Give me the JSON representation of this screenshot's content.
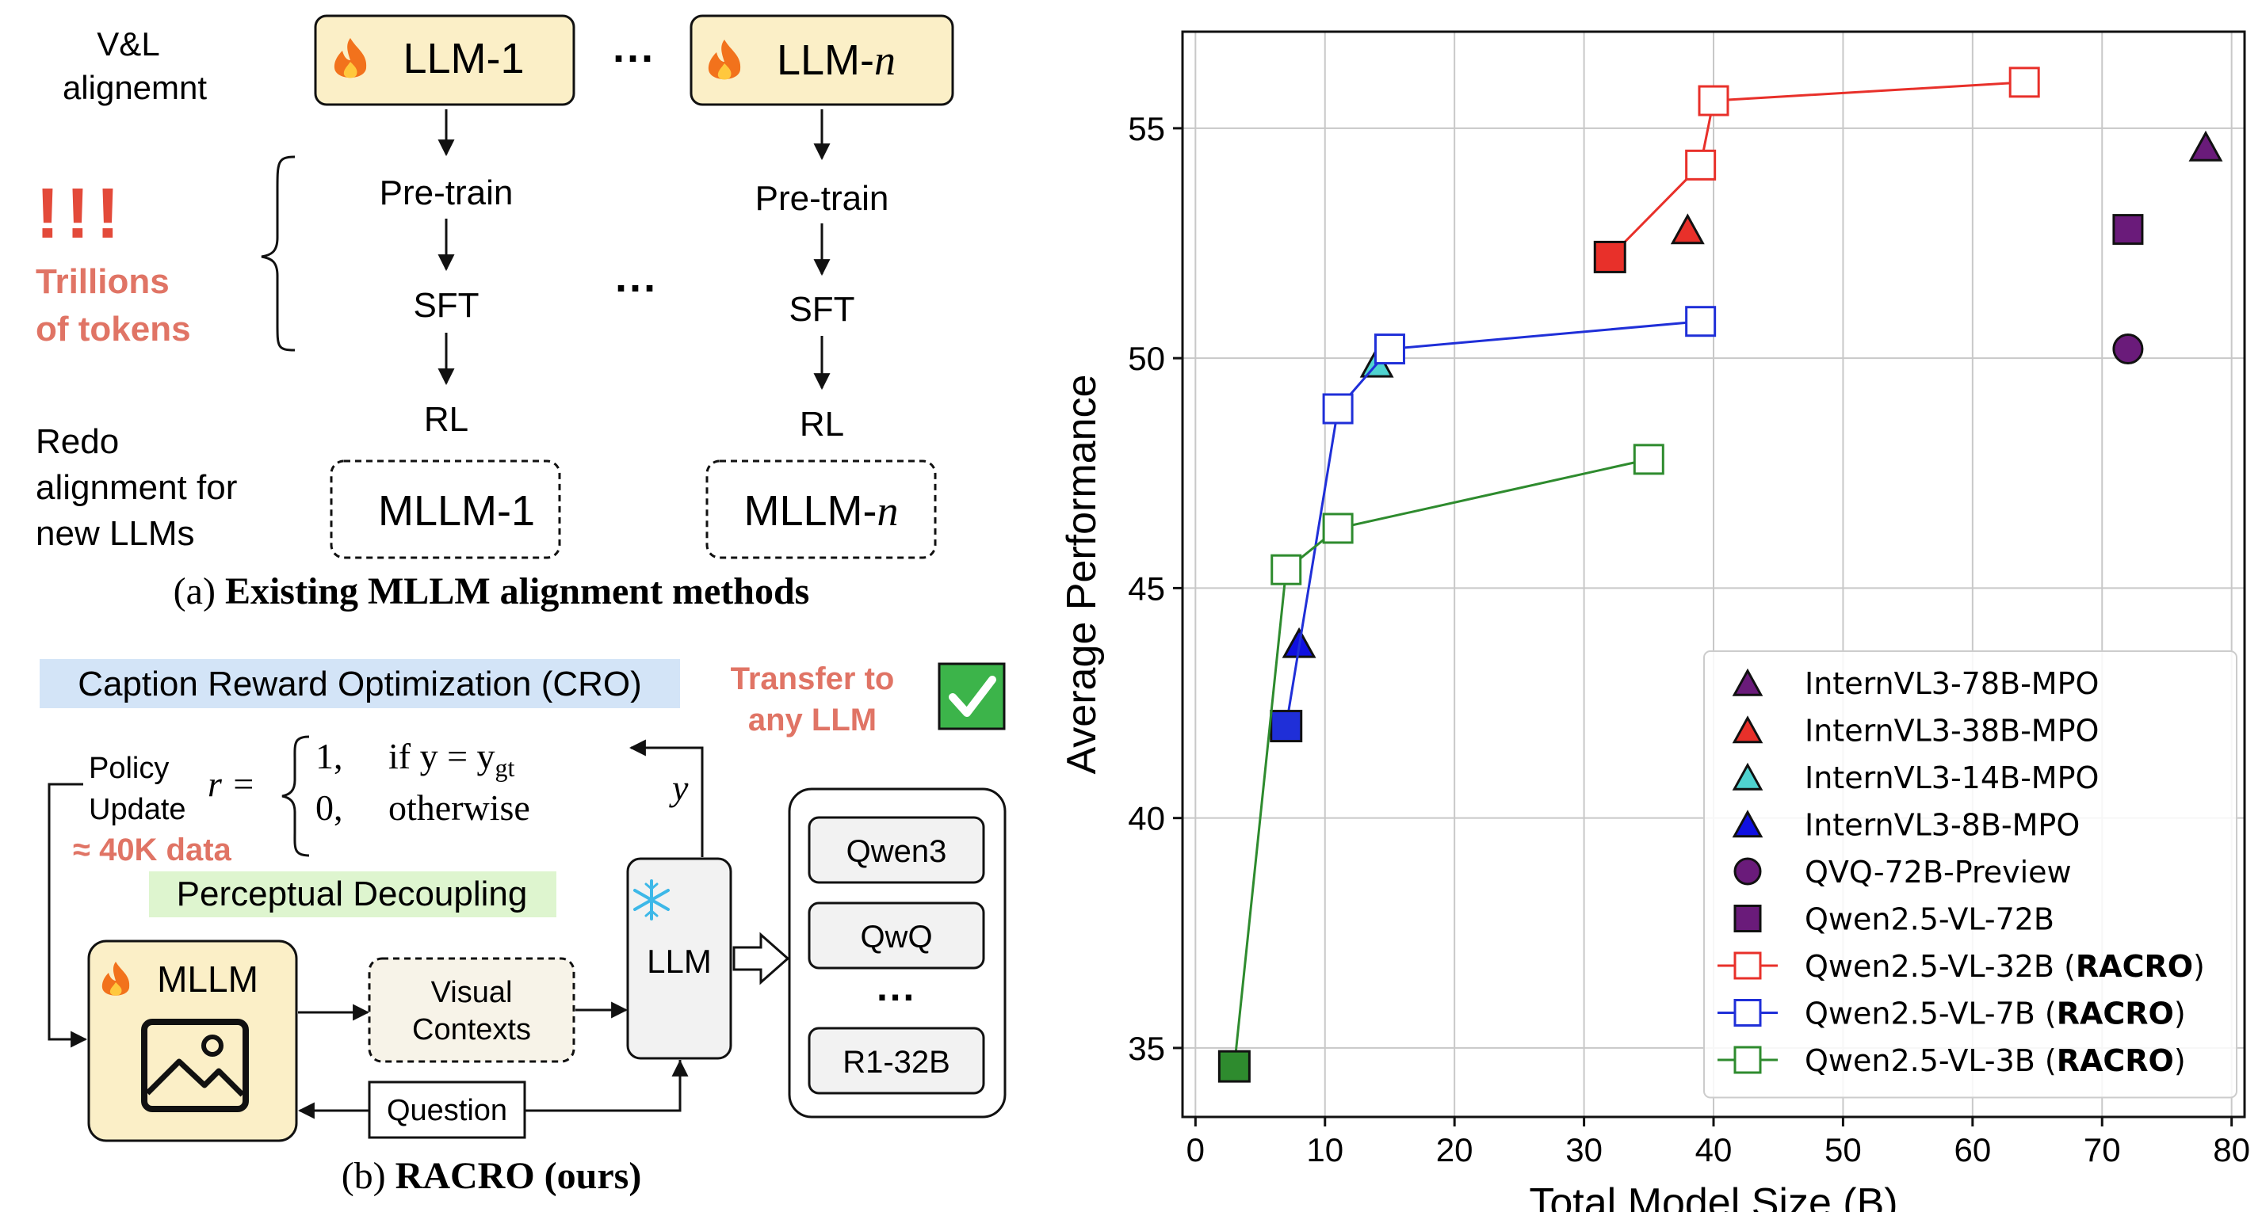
{
  "panel_a": {
    "vl_alignment": [
      "V&L",
      "alignemnt"
    ],
    "llm_1": "LLM-1",
    "llm_n_prefix": "LLM-",
    "llm_n_var": "n",
    "ellipsis": "···",
    "exclaim": "!!!",
    "trillions": [
      "Trillions",
      "of tokens"
    ],
    "redo": [
      "Redo",
      "alignment for",
      "new LLMs"
    ],
    "pretrain": "Pre-train",
    "sft": "SFT",
    "rl": "RL",
    "mllm_1": "MLLM-1",
    "mllm_n_prefix": "MLLM-",
    "mllm_n_var": "n",
    "caption_prefix": "(a) ",
    "caption_bold": "Existing MLLM alignment methods"
  },
  "panel_b": {
    "cro": "Caption Reward Optimization (CRO)",
    "transfer": [
      "Transfer to",
      "any LLM"
    ],
    "policy": [
      "Policy",
      "Update"
    ],
    "data": "≈ 40K data",
    "reward_r": "r =",
    "case1_val": "1,",
    "case1_cond": "if y = y",
    "case1_sub": "gt",
    "case2_val": "0,",
    "case2_cond": "otherwise",
    "y_label": "y",
    "perceptual": "Perceptual Decoupling",
    "mllm": "MLLM",
    "visual": [
      "Visual",
      "Contexts"
    ],
    "llm": "LLM",
    "question": "Question",
    "models": [
      "Qwen3",
      "QwQ",
      "R1-32B"
    ],
    "models_ellipsis": "···",
    "caption_prefix": "(b) ",
    "caption_bold": "RACRO (ours)"
  },
  "chart_data": {
    "type": "scatter",
    "xlabel": "Total Model Size (B)",
    "ylabel": "Average Performance",
    "xlim": [
      -1,
      81
    ],
    "ylim": [
      33.5,
      57.1
    ],
    "xticks": [
      0,
      10,
      20,
      30,
      40,
      50,
      60,
      70,
      80
    ],
    "yticks": [
      35,
      40,
      45,
      50,
      55
    ],
    "grid": true,
    "legend_position": "lower-right",
    "series": [
      {
        "name": "InternVL3-78B-MPO",
        "marker": "triangle",
        "filled": true,
        "color": "#6a1b7a",
        "points": [
          [
            78,
            54.6
          ]
        ]
      },
      {
        "name": "InternVL3-38B-MPO",
        "marker": "triangle",
        "filled": true,
        "color": "#e8302a",
        "points": [
          [
            38,
            52.8
          ]
        ]
      },
      {
        "name": "InternVL3-14B-MPO",
        "marker": "triangle",
        "filled": true,
        "color": "#4fd3d0",
        "points": [
          [
            14,
            49.9
          ]
        ]
      },
      {
        "name": "InternVL3-8B-MPO",
        "marker": "triangle",
        "filled": true,
        "color": "#1010e0",
        "points": [
          [
            8,
            43.8
          ]
        ]
      },
      {
        "name": "QVQ-72B-Preview",
        "marker": "circle",
        "filled": true,
        "color": "#6a1b7a",
        "points": [
          [
            72,
            50.2
          ]
        ]
      },
      {
        "name": "Qwen2.5-VL-72B",
        "marker": "square",
        "filled": true,
        "color": "#6a1b7a",
        "points": [
          [
            72,
            52.8
          ]
        ]
      },
      {
        "name": "Qwen2.5-VL-32B",
        "name_suffix": "RACRO",
        "marker": "square",
        "filled": false,
        "line": true,
        "color": "#e8302a",
        "base": [
          32,
          52.2
        ],
        "points": [
          [
            32,
            52.2
          ],
          [
            39,
            54.2
          ],
          [
            40,
            55.6
          ],
          [
            64,
            56.0
          ]
        ]
      },
      {
        "name": "Qwen2.5-VL-7B",
        "name_suffix": "RACRO",
        "marker": "square",
        "filled": false,
        "line": true,
        "color": "#1f2fd8",
        "base": [
          7,
          42.0
        ],
        "points": [
          [
            7,
            42.0
          ],
          [
            11,
            48.9
          ],
          [
            15,
            50.2
          ],
          [
            39,
            50.8
          ]
        ]
      },
      {
        "name": "Qwen2.5-VL-3B",
        "name_suffix": "RACRO",
        "marker": "square",
        "filled": false,
        "line": true,
        "color": "#2e8b2e",
        "base": [
          3,
          34.6
        ],
        "points": [
          [
            3,
            34.6
          ],
          [
            7,
            45.4
          ],
          [
            11,
            46.3
          ],
          [
            35,
            47.8
          ]
        ]
      }
    ]
  }
}
